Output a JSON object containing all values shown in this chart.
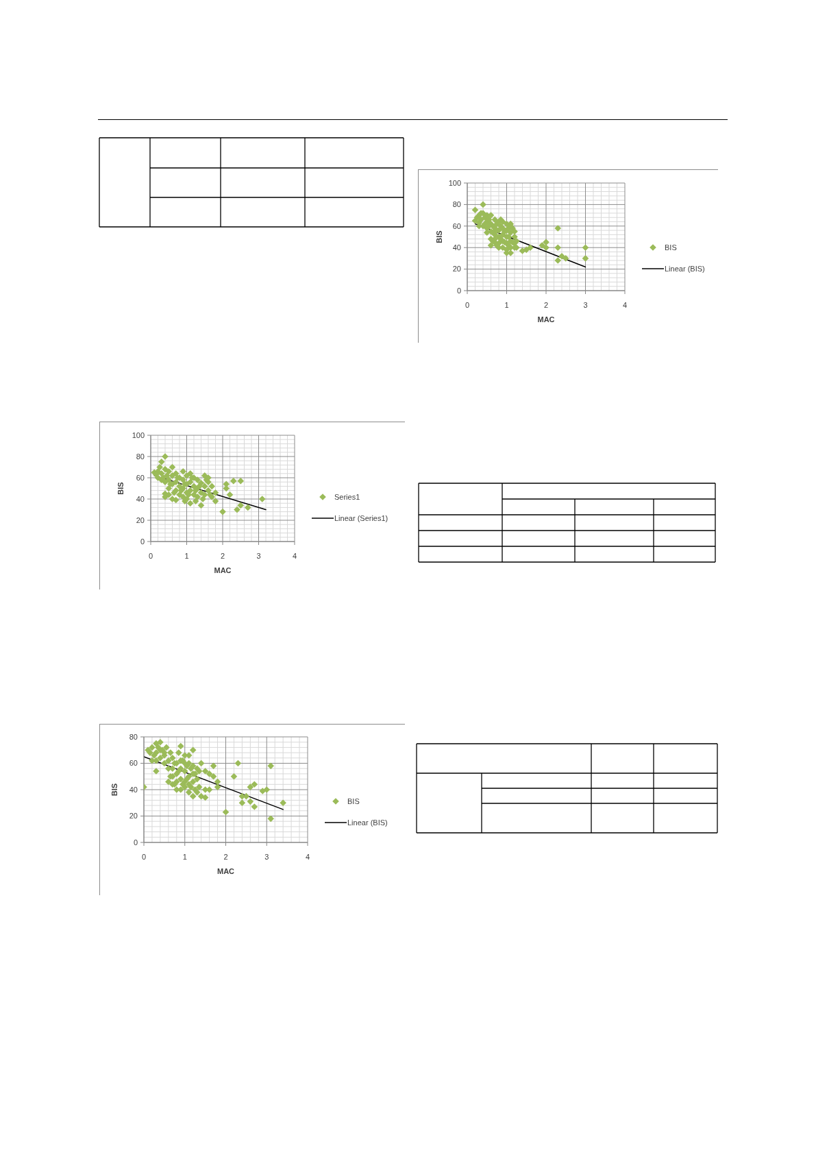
{
  "chart_data": [
    {
      "type": "scatter",
      "xlabel": "MAC",
      "ylabel": "BIS",
      "xlim": [
        0,
        4
      ],
      "ylim": [
        0,
        100
      ],
      "xticks": [
        0,
        {
          "value": 0.2,
          "label": null
        },
        {
          "value": 0.4,
          "label": null
        },
        {
          "value": 0.6,
          "label": null
        },
        {
          "value": 0.8,
          "label": null
        },
        1,
        {
          "value": 1.2,
          "label": null
        },
        {
          "value": 1.4,
          "label": null
        },
        {
          "value": 1.6,
          "label": null
        },
        {
          "value": 1.8,
          "label": null
        },
        2,
        {
          "value": 2.2,
          "label": null
        },
        {
          "value": 2.4,
          "label": null
        },
        {
          "value": 2.6,
          "label": null
        },
        {
          "value": 2.8,
          "label": null
        },
        3,
        {
          "value": 3.2,
          "label": null
        },
        {
          "value": 3.4,
          "label": null
        },
        {
          "value": 3.6,
          "label": null
        },
        {
          "value": 3.8,
          "label": null
        },
        4
      ],
      "yticks": [
        0,
        {
          "value": 4,
          "label": null
        },
        {
          "value": 8,
          "label": null
        },
        {
          "value": 12,
          "label": null
        },
        {
          "value": 16,
          "label": null
        },
        20,
        {
          "value": 24,
          "label": null
        },
        {
          "value": 28,
          "label": null
        },
        {
          "value": 32,
          "label": null
        },
        {
          "value": 36,
          "label": null
        },
        40,
        {
          "value": 44,
          "label": null
        },
        {
          "value": 48,
          "label": null
        },
        {
          "value": 52,
          "label": null
        },
        {
          "value": 56,
          "label": null
        },
        60,
        {
          "value": 64,
          "label": null
        },
        {
          "value": 68,
          "label": null
        },
        {
          "value": 72,
          "label": null
        },
        {
          "value": 76,
          "label": null
        },
        80,
        {
          "value": 84,
          "label": null
        },
        {
          "value": 88,
          "label": null
        },
        {
          "value": 92,
          "label": null
        },
        {
          "value": 96,
          "label": null
        },
        100
      ],
      "grid": true,
      "legend": "right",
      "marker": "diamond",
      "series": [
        {
          "name": "BIS",
          "type": "scatter",
          "color": "#9bbb59",
          "x": [
            0.2,
            0.2,
            0.25,
            0.3,
            0.3,
            0.35,
            0.4,
            0.4,
            0.4,
            0.45,
            0.5,
            0.5,
            0.5,
            0.55,
            0.6,
            0.6,
            0.6,
            0.6,
            0.6,
            0.65,
            0.7,
            0.7,
            0.7,
            0.7,
            0.75,
            0.8,
            0.8,
            0.8,
            0.8,
            0.8,
            0.85,
            0.9,
            0.9,
            0.9,
            0.9,
            0.95,
            1.0,
            1.0,
            1.0,
            1.0,
            1.0,
            1.0,
            1.05,
            1.1,
            1.1,
            1.1,
            1.1,
            1.1,
            1.15,
            1.2,
            1.2,
            1.2,
            1.25,
            1.4,
            1.5,
            1.6,
            1.9,
            2.0,
            2.0,
            2.3,
            2.3,
            2.3,
            2.4,
            2.5,
            3.0,
            3.0,
            0.3,
            0.35,
            0.45,
            0.5,
            0.55,
            0.65,
            0.7,
            0.75,
            0.85,
            0.9,
            0.95,
            1.05,
            1.05,
            1.15,
            1.2,
            1.25,
            0.75,
            0.65,
            1.1,
            0.85
          ],
          "values": [
            75,
            65,
            68,
            70,
            63,
            66,
            80,
            72,
            60,
            68,
            70,
            64,
            58,
            66,
            70,
            62,
            55,
            48,
            42,
            60,
            66,
            58,
            52,
            45,
            62,
            64,
            56,
            50,
            44,
            40,
            60,
            58,
            52,
            46,
            40,
            55,
            62,
            56,
            50,
            44,
            38,
            35,
            58,
            62,
            54,
            46,
            40,
            35,
            58,
            50,
            44,
            40,
            46,
            37,
            38,
            40,
            42,
            45,
            40,
            58,
            40,
            28,
            32,
            30,
            40,
            30,
            60,
            72,
            62,
            54,
            60,
            54,
            48,
            56,
            48,
            64,
            45,
            50,
            42,
            45,
            55,
            40,
            42,
            46,
            60,
            66
          ]
        },
        {
          "name": "Linear (BIS)",
          "type": "line",
          "color": "#000000",
          "marker": "none",
          "line_style": "solid",
          "x": [
            0.2,
            3.0
          ],
          "values": [
            62,
            22
          ]
        }
      ]
    },
    {
      "type": "scatter",
      "xlabel": "MAC",
      "ylabel": "BIS",
      "xlim": [
        0,
        4
      ],
      "ylim": [
        0,
        100
      ],
      "xticks": [
        0,
        {
          "value": 0.2,
          "label": null
        },
        {
          "value": 0.4,
          "label": null
        },
        {
          "value": 0.6,
          "label": null
        },
        {
          "value": 0.8,
          "label": null
        },
        1,
        {
          "value": 1.2,
          "label": null
        },
        {
          "value": 1.4,
          "label": null
        },
        {
          "value": 1.6,
          "label": null
        },
        {
          "value": 1.8,
          "label": null
        },
        2,
        {
          "value": 2.2,
          "label": null
        },
        {
          "value": 2.4,
          "label": null
        },
        {
          "value": 2.6,
          "label": null
        },
        {
          "value": 2.8,
          "label": null
        },
        3,
        {
          "value": 3.2,
          "label": null
        },
        {
          "value": 3.4,
          "label": null
        },
        {
          "value": 3.6,
          "label": null
        },
        {
          "value": 3.8,
          "label": null
        },
        4
      ],
      "yticks": [
        0,
        {
          "value": 4,
          "label": null
        },
        {
          "value": 8,
          "label": null
        },
        {
          "value": 12,
          "label": null
        },
        {
          "value": 16,
          "label": null
        },
        20,
        {
          "value": 24,
          "label": null
        },
        {
          "value": 28,
          "label": null
        },
        {
          "value": 32,
          "label": null
        },
        {
          "value": 36,
          "label": null
        },
        40,
        {
          "value": 44,
          "label": null
        },
        {
          "value": 48,
          "label": null
        },
        {
          "value": 52,
          "label": null
        },
        {
          "value": 56,
          "label": null
        },
        60,
        {
          "value": 64,
          "label": null
        },
        {
          "value": 68,
          "label": null
        },
        {
          "value": 72,
          "label": null
        },
        {
          "value": 76,
          "label": null
        },
        80,
        {
          "value": 84,
          "label": null
        },
        {
          "value": 88,
          "label": null
        },
        {
          "value": 92,
          "label": null
        },
        {
          "value": 96,
          "label": null
        },
        100
      ],
      "grid": true,
      "legend": "right",
      "marker": "diamond",
      "series": [
        {
          "name": "Series1",
          "type": "scatter",
          "color": "#9bbb59",
          "x": [
            0.1,
            0.2,
            0.25,
            0.3,
            0.3,
            0.35,
            0.4,
            0.4,
            0.4,
            0.4,
            0.4,
            0.5,
            0.5,
            0.5,
            0.6,
            0.6,
            0.6,
            0.6,
            0.7,
            0.7,
            0.7,
            0.7,
            0.8,
            0.8,
            0.8,
            0.9,
            0.9,
            0.9,
            0.9,
            1.0,
            1.0,
            1.0,
            1.0,
            1.1,
            1.1,
            1.1,
            1.1,
            1.2,
            1.2,
            1.2,
            1.3,
            1.3,
            1.3,
            1.4,
            1.4,
            1.4,
            1.5,
            1.5,
            1.5,
            1.6,
            1.6,
            1.7,
            1.7,
            1.8,
            1.8,
            2.0,
            2.1,
            2.1,
            2.2,
            2.3,
            2.5,
            2.4,
            2.5,
            2.7,
            3.1,
            0.15,
            0.2,
            0.3,
            0.45,
            0.5,
            0.55,
            0.65,
            0.75,
            0.85,
            0.95,
            1.05,
            1.15,
            1.25,
            1.35,
            1.45,
            1.55,
            1.65,
            1.25,
            0.95,
            1.6
          ],
          "values": [
            65,
            66,
            70,
            75,
            64,
            60,
            80,
            68,
            56,
            45,
            42,
            66,
            58,
            50,
            70,
            62,
            54,
            40,
            64,
            56,
            48,
            39,
            60,
            52,
            44,
            66,
            58,
            50,
            42,
            62,
            54,
            46,
            40,
            64,
            56,
            48,
            36,
            60,
            52,
            44,
            58,
            50,
            42,
            55,
            46,
            34,
            62,
            52,
            44,
            56,
            48,
            52,
            42,
            46,
            38,
            28,
            54,
            50,
            44,
            57,
            57,
            30,
            34,
            32,
            40,
            63,
            60,
            58,
            62,
            44,
            54,
            46,
            60,
            48,
            54,
            44,
            60,
            48,
            52,
            40,
            58,
            44,
            38,
            38,
            60
          ]
        },
        {
          "name": "Linear (Series1)",
          "type": "line",
          "color": "#000000",
          "marker": "none",
          "line_style": "solid",
          "x": [
            0.1,
            3.2
          ],
          "values": [
            62,
            30
          ]
        }
      ]
    },
    {
      "type": "scatter",
      "xlabel": "MAC",
      "ylabel": "BIS",
      "xlim": [
        0,
        4
      ],
      "ylim": [
        0,
        80
      ],
      "xticks": [
        0,
        {
          "value": 0.2,
          "label": null
        },
        {
          "value": 0.4,
          "label": null
        },
        {
          "value": 0.6,
          "label": null
        },
        {
          "value": 0.8,
          "label": null
        },
        1,
        {
          "value": 1.2,
          "label": null
        },
        {
          "value": 1.4,
          "label": null
        },
        {
          "value": 1.6,
          "label": null
        },
        {
          "value": 1.8,
          "label": null
        },
        2,
        {
          "value": 2.2,
          "label": null
        },
        {
          "value": 2.4,
          "label": null
        },
        {
          "value": 2.6,
          "label": null
        },
        {
          "value": 2.8,
          "label": null
        },
        3,
        {
          "value": 3.2,
          "label": null
        },
        {
          "value": 3.4,
          "label": null
        },
        {
          "value": 3.6,
          "label": null
        },
        {
          "value": 3.8,
          "label": null
        },
        4
      ],
      "yticks": [
        0,
        {
          "value": 4,
          "label": null
        },
        {
          "value": 8,
          "label": null
        },
        {
          "value": 12,
          "label": null
        },
        {
          "value": 16,
          "label": null
        },
        20,
        {
          "value": 24,
          "label": null
        },
        {
          "value": 28,
          "label": null
        },
        {
          "value": 32,
          "label": null
        },
        {
          "value": 36,
          "label": null
        },
        40,
        {
          "value": 44,
          "label": null
        },
        {
          "value": 48,
          "label": null
        },
        {
          "value": 52,
          "label": null
        },
        {
          "value": 56,
          "label": null
        },
        60,
        {
          "value": 64,
          "label": null
        },
        {
          "value": 68,
          "label": null
        },
        {
          "value": 72,
          "label": null
        },
        {
          "value": 76,
          "label": null
        },
        80
      ],
      "grid": true,
      "legend": "right",
      "marker": "diamond",
      "series": [
        {
          "name": "BIS",
          "type": "scatter",
          "color": "#9bbb59",
          "x": [
            0.0,
            0.1,
            0.15,
            0.2,
            0.2,
            0.25,
            0.3,
            0.3,
            0.3,
            0.35,
            0.4,
            0.4,
            0.45,
            0.5,
            0.5,
            0.6,
            0.6,
            0.65,
            0.7,
            0.7,
            0.7,
            0.75,
            0.8,
            0.8,
            0.8,
            0.85,
            0.9,
            0.9,
            0.9,
            0.9,
            0.95,
            1.0,
            1.0,
            1.0,
            1.0,
            1.05,
            1.1,
            1.1,
            1.1,
            1.1,
            1.15,
            1.2,
            1.2,
            1.2,
            1.2,
            1.25,
            1.3,
            1.3,
            1.35,
            1.4,
            1.4,
            1.5,
            1.5,
            1.5,
            1.6,
            1.6,
            1.7,
            1.7,
            1.8,
            1.8,
            2.0,
            2.2,
            2.3,
            2.4,
            2.4,
            2.5,
            2.6,
            2.6,
            2.7,
            2.7,
            2.9,
            3.0,
            3.1,
            3.1,
            3.4,
            0.3,
            0.4,
            0.55,
            0.6,
            0.65,
            0.75,
            0.8,
            0.85,
            0.95,
            1.0,
            1.05,
            1.1,
            1.15,
            1.25,
            1.3,
            1.35,
            0.7,
            0.5,
            0.9,
            1.2
          ],
          "values": [
            42,
            70,
            68,
            62,
            72,
            66,
            75,
            54,
            68,
            72,
            76,
            64,
            70,
            66,
            60,
            62,
            46,
            68,
            56,
            50,
            64,
            44,
            60,
            52,
            46,
            68,
            73,
            56,
            48,
            40,
            62,
            66,
            54,
            46,
            42,
            58,
            60,
            50,
            44,
            38,
            56,
            70,
            52,
            46,
            35,
            40,
            56,
            48,
            42,
            60,
            35,
            34,
            40,
            54,
            40,
            52,
            58,
            50,
            46,
            42,
            23,
            50,
            60,
            35,
            30,
            35,
            31,
            42,
            44,
            27,
            39,
            40,
            58,
            18,
            30,
            62,
            70,
            72,
            56,
            50,
            60,
            40,
            54,
            44,
            60,
            48,
            66,
            42,
            52,
            38,
            54,
            44,
            68,
            62,
            58
          ]
        },
        {
          "name": "Linear (BIS)",
          "type": "line",
          "color": "#000000",
          "marker": "none",
          "line_style": "solid",
          "x": [
            0.0,
            3.4
          ],
          "values": [
            65,
            25
          ]
        }
      ]
    }
  ]
}
